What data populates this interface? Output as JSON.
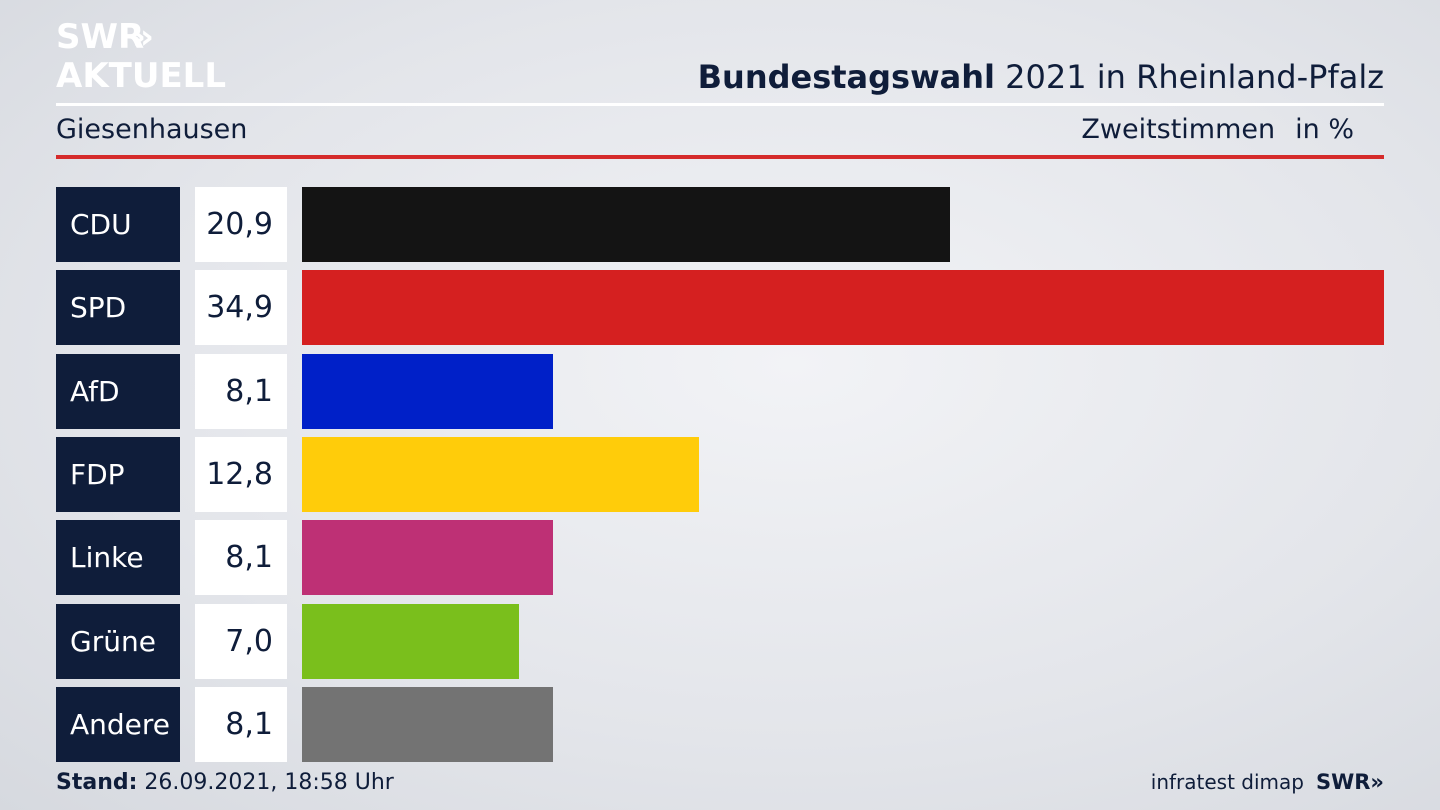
{
  "logo": {
    "line1": "SWR",
    "line2": "AKTUELL",
    "arrows": "»"
  },
  "header": {
    "title_bold": "Bundestagswahl",
    "title_rest": " 2021 in Rheinland-Pfalz",
    "region": "Giesenhausen",
    "measure": "Zweitstimmen",
    "unit": "in %"
  },
  "chart_data": {
    "type": "bar",
    "orientation": "horizontal",
    "categories": [
      "CDU",
      "SPD",
      "AfD",
      "FDP",
      "Linke",
      "Grüne",
      "Andere"
    ],
    "values": [
      20.9,
      34.9,
      8.1,
      12.8,
      8.1,
      7.0,
      8.1
    ],
    "value_labels": [
      "20,9",
      "34,9",
      "8,1",
      "12,8",
      "8,1",
      "7,0",
      "8,1"
    ],
    "colors": [
      "#141414",
      "#d52020",
      "#0020c8",
      "#ffcc0a",
      "#be3075",
      "#7abf1c",
      "#737373"
    ],
    "xlim": [
      0,
      34.9
    ]
  },
  "footer": {
    "stand_label": "Stand:",
    "stand_value": " 26.09.2021, 18:58 Uhr",
    "source": "infratest dimap",
    "source_logo": "SWR»"
  }
}
